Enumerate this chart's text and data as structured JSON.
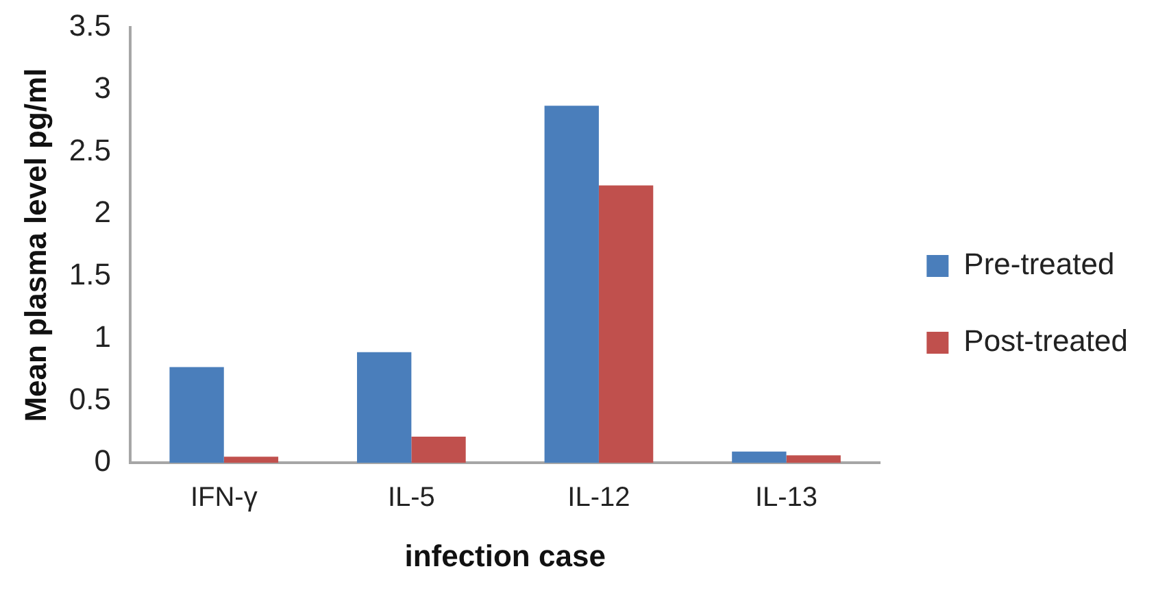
{
  "chart_data": {
    "type": "bar",
    "xlabel": "infection case",
    "ylabel": "Mean plasma level pg/ml",
    "categories": [
      "IFN-γ",
      "IL-5",
      "IL-12",
      "IL-13"
    ],
    "series": [
      {
        "name": "Pre-treated",
        "color": "#4a7ebb",
        "values": [
          0.77,
          0.89,
          2.87,
          0.09
        ]
      },
      {
        "name": "Post-treated",
        "color": "#c0504d",
        "values": [
          0.05,
          0.21,
          2.23,
          0.06
        ]
      }
    ],
    "ylim": [
      0,
      3.5
    ],
    "yticks": [
      0,
      0.5,
      1,
      1.5,
      2,
      2.5,
      3,
      3.5
    ],
    "grid": false,
    "legend": "right"
  }
}
